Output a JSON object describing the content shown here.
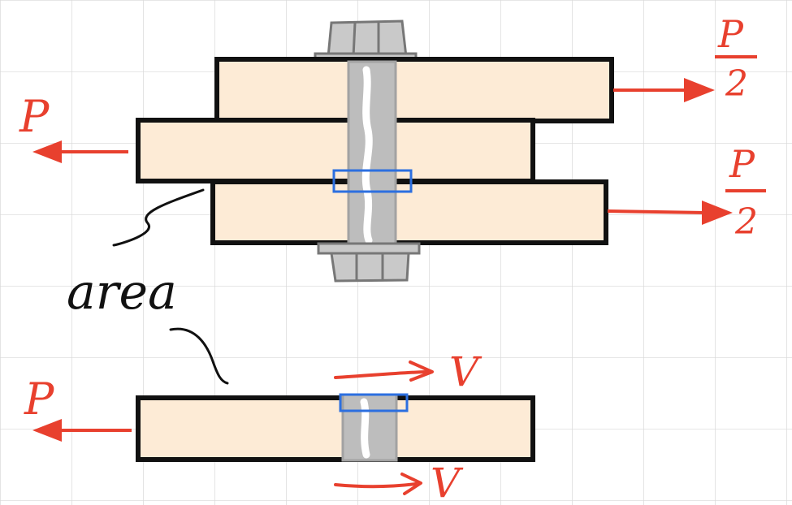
{
  "labels": {
    "area": "area"
  },
  "forces": {
    "p_left_top": {
      "symbol": "P"
    },
    "p_half_top": {
      "num": "P",
      "den": "2"
    },
    "p_half_bottom": {
      "num": "P",
      "den": "2"
    },
    "p_left_free_body": {
      "symbol": "P"
    },
    "v_top": {
      "symbol": "V"
    },
    "v_bottom": {
      "symbol": "V"
    }
  },
  "colors": {
    "plate_fill": "#fdebd6",
    "outline": "#111111",
    "force_red": "#e8402e",
    "shear_box_blue": "#2c6fe0",
    "bolt_gray": "#bdbdbd",
    "grid": "#d6d6d6"
  }
}
